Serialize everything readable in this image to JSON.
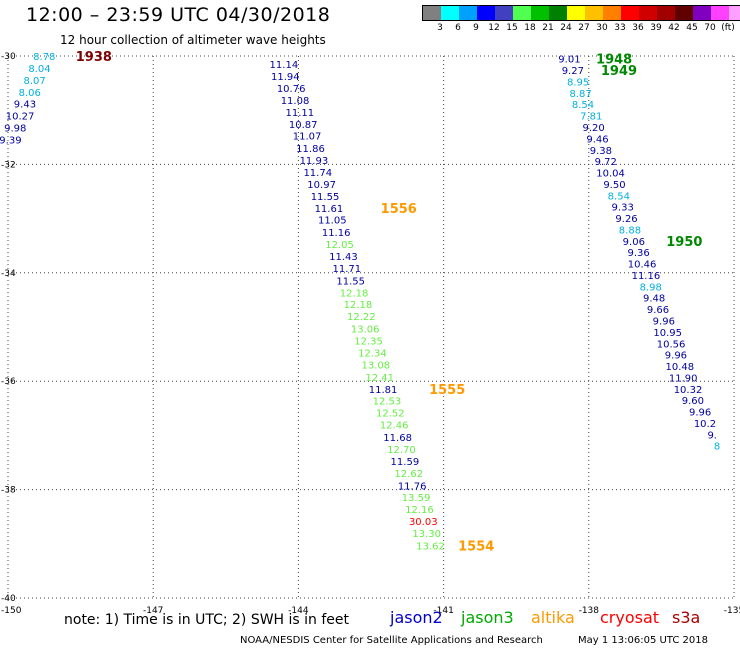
{
  "header": {
    "title": "12:00 – 23:59 UTC 04/30/2018",
    "subtitle": "12 hour collection of altimeter wave heights"
  },
  "scale": {
    "colors": [
      "#808080",
      "#00ffff",
      "#00a0ff",
      "#0000ff",
      "#4040c0",
      "#50ff50",
      "#00c000",
      "#008000",
      "#ffff00",
      "#ffc000",
      "#ff8000",
      "#ff0000",
      "#d00000",
      "#a00000",
      "#600000",
      "#8000c0",
      "#ff40ff",
      "#ffa0ff",
      "#000000"
    ],
    "labels": [
      "3",
      "6",
      "9",
      "12",
      "15",
      "18",
      "21",
      "24",
      "27",
      "30",
      "33",
      "36",
      "39",
      "42",
      "45",
      "70",
      "(ft)"
    ]
  },
  "footer": {
    "note": "note:  1) Time is in UTC;  2) SWH is in feet",
    "credit": "NOAA/NESDIS Center for Satellite Applications and Research",
    "timestamp": "May  1 13:06:05 UTC 2018"
  },
  "legend": [
    {
      "name": "jason2",
      "color": "#0000cc"
    },
    {
      "name": "jason3",
      "color": "#00aa00"
    },
    {
      "name": "altika",
      "color": "#ff9900"
    },
    {
      "name": "cryosat",
      "color": "#ff0000"
    },
    {
      "name": "s3a",
      "color": "#aa0000"
    }
  ],
  "chart_data": {
    "type": "scatter",
    "xlabel": "",
    "ylabel": "",
    "xlim": [
      -150,
      -135
    ],
    "ylim": [
      -40,
      -30
    ],
    "x_ticks": [
      "-150",
      "-147",
      "-144",
      "-141",
      "-138",
      "-135"
    ],
    "y_ticks": [
      "-30",
      "-32",
      "-34",
      "-36",
      "-38",
      "-40"
    ],
    "colors": {
      "cyan": "#00b0e0",
      "blue": "#0000a0",
      "green": "#66ee44",
      "red": "#ff0000",
      "orange": "#ff9900",
      "darkgreen": "#008800",
      "maroon": "#800000"
    },
    "series": [
      {
        "points": [
          {
            "lon": -149.25,
            "lat": -30.0,
            "v": "8.78",
            "c": "cyan"
          },
          {
            "lon": -149.35,
            "lat": -30.22,
            "v": "8.04",
            "c": "cyan"
          },
          {
            "lon": -149.45,
            "lat": -30.44,
            "v": "8.07",
            "c": "cyan"
          },
          {
            "lon": -149.55,
            "lat": -30.66,
            "v": "8.06",
            "c": "cyan"
          },
          {
            "lon": -149.65,
            "lat": -30.88,
            "v": "9.43",
            "c": "blue"
          },
          {
            "lon": -149.75,
            "lat": -31.1,
            "v": "10.27",
            "c": "blue"
          },
          {
            "lon": -149.85,
            "lat": -31.32,
            "v": "9.98",
            "c": "blue"
          },
          {
            "lon": -149.95,
            "lat": -31.54,
            "v": "9.39",
            "c": "blue"
          }
        ],
        "labels": [
          {
            "text": "1938",
            "lon": -148.6,
            "lat": -30.0,
            "c": "maroon"
          }
        ]
      },
      {
        "points": [
          {
            "lon": -144.3,
            "lat": -30.15,
            "v": "11.14",
            "c": "blue"
          },
          {
            "lon": -144.27,
            "lat": -30.37,
            "v": "11.94",
            "c": "blue"
          },
          {
            "lon": -144.15,
            "lat": -30.59,
            "v": "10.76",
            "c": "blue"
          },
          {
            "lon": -144.07,
            "lat": -30.81,
            "v": "11.08",
            "c": "blue"
          },
          {
            "lon": -143.97,
            "lat": -31.03,
            "v": "11.11",
            "c": "blue"
          },
          {
            "lon": -143.9,
            "lat": -31.25,
            "v": "10.87",
            "c": "blue"
          },
          {
            "lon": -143.82,
            "lat": -31.47,
            "v": "11.07",
            "c": "blue"
          },
          {
            "lon": -143.75,
            "lat": -31.7,
            "v": "11.86",
            "c": "blue"
          },
          {
            "lon": -143.68,
            "lat": -31.92,
            "v": "11.93",
            "c": "blue"
          },
          {
            "lon": -143.6,
            "lat": -32.14,
            "v": "11.74",
            "c": "blue"
          },
          {
            "lon": -143.52,
            "lat": -32.36,
            "v": "10.97",
            "c": "blue"
          },
          {
            "lon": -143.45,
            "lat": -32.58,
            "v": "11.55",
            "c": "blue"
          },
          {
            "lon": -143.37,
            "lat": -32.8,
            "v": "11.61",
            "c": "blue"
          },
          {
            "lon": -143.3,
            "lat": -33.02,
            "v": "11.05",
            "c": "blue"
          },
          {
            "lon": -143.22,
            "lat": -33.25,
            "v": "11.16",
            "c": "blue"
          },
          {
            "lon": -143.15,
            "lat": -33.47,
            "v": "12.05",
            "c": "green"
          },
          {
            "lon": -143.07,
            "lat": -33.69,
            "v": "11.43",
            "c": "blue"
          },
          {
            "lon": -143.0,
            "lat": -33.91,
            "v": "11.71",
            "c": "blue"
          },
          {
            "lon": -142.92,
            "lat": -34.14,
            "v": "11.55",
            "c": "blue"
          },
          {
            "lon": -142.85,
            "lat": -34.36,
            "v": "12.18",
            "c": "green"
          },
          {
            "lon": -142.77,
            "lat": -34.58,
            "v": "12.18",
            "c": "green"
          },
          {
            "lon": -142.7,
            "lat": -34.8,
            "v": "12.22",
            "c": "green"
          },
          {
            "lon": -142.62,
            "lat": -35.03,
            "v": "13.06",
            "c": "green"
          },
          {
            "lon": -142.55,
            "lat": -35.25,
            "v": "12.35",
            "c": "green"
          },
          {
            "lon": -142.47,
            "lat": -35.47,
            "v": "12.34",
            "c": "green"
          },
          {
            "lon": -142.4,
            "lat": -35.69,
            "v": "13.08",
            "c": "green"
          },
          {
            "lon": -142.32,
            "lat": -35.92,
            "v": "12.41",
            "c": "green"
          },
          {
            "lon": -142.25,
            "lat": -36.14,
            "v": "11.81",
            "c": "blue"
          },
          {
            "lon": -142.17,
            "lat": -36.36,
            "v": "12.53",
            "c": "green"
          },
          {
            "lon": -142.1,
            "lat": -36.58,
            "v": "12.52",
            "c": "green"
          },
          {
            "lon": -142.02,
            "lat": -36.8,
            "v": "12.46",
            "c": "green"
          },
          {
            "lon": -141.95,
            "lat": -37.03,
            "v": "11.68",
            "c": "blue"
          },
          {
            "lon": -141.87,
            "lat": -37.25,
            "v": "12.70",
            "c": "green"
          },
          {
            "lon": -141.8,
            "lat": -37.47,
            "v": "11.59",
            "c": "blue"
          },
          {
            "lon": -141.72,
            "lat": -37.69,
            "v": "12.62",
            "c": "green"
          },
          {
            "lon": -141.65,
            "lat": -37.92,
            "v": "11.76",
            "c": "blue"
          },
          {
            "lon": -141.57,
            "lat": -38.14,
            "v": "13.59",
            "c": "green"
          },
          {
            "lon": -141.5,
            "lat": -38.36,
            "v": "12.16",
            "c": "green"
          },
          {
            "lon": -141.42,
            "lat": -38.58,
            "v": "30.03",
            "c": "red"
          },
          {
            "lon": -141.35,
            "lat": -38.8,
            "v": "13.30",
            "c": "green"
          },
          {
            "lon": -141.27,
            "lat": -39.03,
            "v": "13.62",
            "c": "green"
          }
        ],
        "labels": [
          {
            "text": "1556",
            "lon": -142.3,
            "lat": -32.8,
            "c": "orange"
          },
          {
            "text": "1555",
            "lon": -141.3,
            "lat": -36.14,
            "c": "orange"
          },
          {
            "text": "1554",
            "lon": -140.7,
            "lat": -39.03,
            "c": "orange"
          }
        ]
      },
      {
        "points": [
          {
            "lon": -138.4,
            "lat": -30.05,
            "v": "9.01",
            "c": "blue"
          },
          {
            "lon": -138.33,
            "lat": -30.26,
            "v": "9.27",
            "c": "blue"
          },
          {
            "lon": -138.22,
            "lat": -30.47,
            "v": "8.95",
            "c": "cyan"
          },
          {
            "lon": -138.17,
            "lat": -30.68,
            "v": "8.87",
            "c": "cyan"
          },
          {
            "lon": -138.12,
            "lat": -30.89,
            "v": "8.54",
            "c": "cyan"
          },
          {
            "lon": -137.95,
            "lat": -31.1,
            "v": "7.81",
            "c": "cyan"
          },
          {
            "lon": -137.9,
            "lat": -31.31,
            "v": "9.20",
            "c": "blue"
          },
          {
            "lon": -137.82,
            "lat": -31.52,
            "v": "9.46",
            "c": "blue"
          },
          {
            "lon": -137.75,
            "lat": -31.73,
            "v": "9.38",
            "c": "blue"
          },
          {
            "lon": -137.65,
            "lat": -31.94,
            "v": "9.72",
            "c": "blue"
          },
          {
            "lon": -137.55,
            "lat": -32.15,
            "v": "10.04",
            "c": "blue"
          },
          {
            "lon": -137.47,
            "lat": -32.36,
            "v": "9.50",
            "c": "blue"
          },
          {
            "lon": -137.38,
            "lat": -32.57,
            "v": "8.54",
            "c": "cyan"
          },
          {
            "lon": -137.3,
            "lat": -32.78,
            "v": "9.33",
            "c": "blue"
          },
          {
            "lon": -137.22,
            "lat": -32.99,
            "v": "9.26",
            "c": "blue"
          },
          {
            "lon": -137.15,
            "lat": -33.2,
            "v": "8.88",
            "c": "cyan"
          },
          {
            "lon": -137.07,
            "lat": -33.41,
            "v": "9.06",
            "c": "blue"
          },
          {
            "lon": -136.97,
            "lat": -33.62,
            "v": "9.36",
            "c": "blue"
          },
          {
            "lon": -136.9,
            "lat": -33.83,
            "v": "10.46",
            "c": "blue"
          },
          {
            "lon": -136.82,
            "lat": -34.04,
            "v": "11.16",
            "c": "blue"
          },
          {
            "lon": -136.72,
            "lat": -34.25,
            "v": "8.98",
            "c": "cyan"
          },
          {
            "lon": -136.65,
            "lat": -34.46,
            "v": "9.48",
            "c": "blue"
          },
          {
            "lon": -136.57,
            "lat": -34.67,
            "v": "9.66",
            "c": "blue"
          },
          {
            "lon": -136.45,
            "lat": -34.88,
            "v": "9.96",
            "c": "blue"
          },
          {
            "lon": -136.37,
            "lat": -35.09,
            "v": "10.95",
            "c": "blue"
          },
          {
            "lon": -136.3,
            "lat": -35.3,
            "v": "10.56",
            "c": "blue"
          },
          {
            "lon": -136.2,
            "lat": -35.51,
            "v": "9.96",
            "c": "blue"
          },
          {
            "lon": -136.12,
            "lat": -35.72,
            "v": "10.48",
            "c": "blue"
          },
          {
            "lon": -136.05,
            "lat": -35.93,
            "v": "11.90",
            "c": "blue"
          },
          {
            "lon": -135.95,
            "lat": -36.14,
            "v": "10.32",
            "c": "blue"
          },
          {
            "lon": -135.85,
            "lat": -36.35,
            "v": "9.60",
            "c": "blue"
          },
          {
            "lon": -135.7,
            "lat": -36.56,
            "v": "9.96",
            "c": "blue"
          },
          {
            "lon": -135.6,
            "lat": -36.77,
            "v": "10.2",
            "c": "blue"
          },
          {
            "lon": -135.45,
            "lat": -36.98,
            "v": "9.",
            "c": "blue"
          },
          {
            "lon": -135.35,
            "lat": -37.19,
            "v": "8",
            "c": "cyan"
          }
        ],
        "labels": [
          {
            "text": "1948",
            "lon": -137.85,
            "lat": -30.05,
            "c": "darkgreen"
          },
          {
            "text": "1949",
            "lon": -137.75,
            "lat": -30.26,
            "c": "darkgreen"
          },
          {
            "text": "1950",
            "lon": -136.4,
            "lat": -33.41,
            "c": "darkgreen"
          }
        ]
      }
    ]
  }
}
